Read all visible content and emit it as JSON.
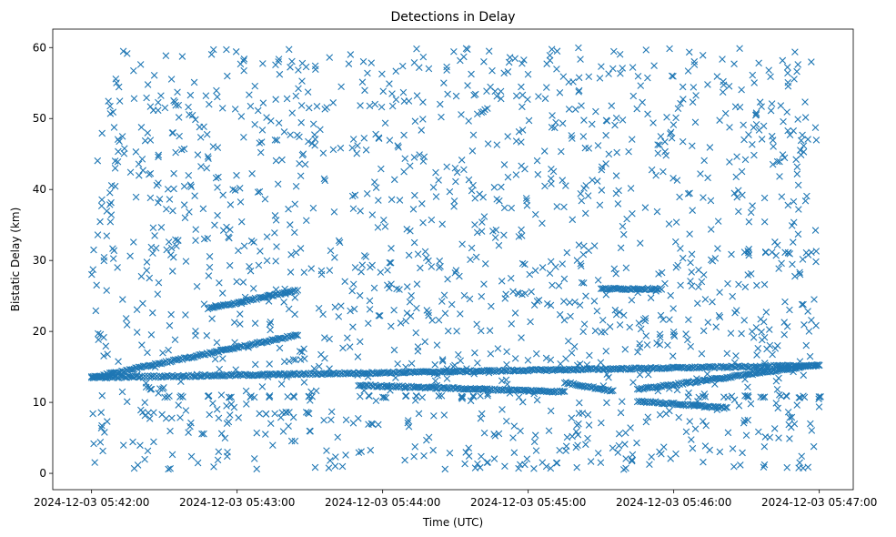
{
  "chart_data": {
    "type": "scatter",
    "title": "Detections in Delay",
    "xlabel": "Time (UTC)",
    "ylabel": "Bistatic Delay (km)",
    "marker": "x",
    "color": "#1f77b4",
    "x_unit": "seconds after 2024-12-03 05:42:00",
    "xlim": [
      "2024-12-03 05:41:44",
      "2024-12-03 05:47:14"
    ],
    "ylim": [
      -2.3,
      62.6
    ],
    "x_ticks": [
      "2024-12-03 05:42:00",
      "2024-12-03 05:43:00",
      "2024-12-03 05:44:00",
      "2024-12-03 05:45:00",
      "2024-12-03 05:46:00",
      "2024-12-03 05:47:00"
    ],
    "y_ticks": [
      "0",
      "10",
      "20",
      "30",
      "40",
      "50",
      "60"
    ],
    "y_tick_values": [
      0,
      10,
      20,
      30,
      40,
      50,
      60
    ],
    "grid": false,
    "legend": "none",
    "tracks": [
      {
        "x_start": 0,
        "x_end": 300,
        "y_start": 13.5,
        "y_end": 15.2,
        "description": "long rising track"
      },
      {
        "x_start": 0,
        "x_end": 85,
        "y_start": 13.5,
        "y_end": 19.5
      },
      {
        "x_start": 48,
        "x_end": 85,
        "y_start": 23.2,
        "y_end": 25.8
      },
      {
        "x_start": 110,
        "x_end": 195,
        "y_start": 12.4,
        "y_end": 11.5
      },
      {
        "x_start": 195,
        "x_end": 215,
        "y_start": 12.8,
        "y_end": 11.6
      },
      {
        "x_start": 210,
        "x_end": 235,
        "y_start": 26.0,
        "y_end": 26.0
      },
      {
        "x_start": 225,
        "x_end": 300,
        "y_start": 11.8,
        "y_end": 15.3
      },
      {
        "x_start": 225,
        "x_end": 262,
        "y_start": 10.2,
        "y_end": 9.2
      }
    ],
    "dashed_rows": [
      {
        "y": 12.0,
        "x_start": 22,
        "x_end": 32
      },
      {
        "y": 10.8,
        "x_start": 30,
        "x_end": 95
      },
      {
        "y": 8.5,
        "x_start": 68,
        "x_end": 95
      },
      {
        "y": 10.8,
        "x_start": 110,
        "x_end": 160
      },
      {
        "y": 10.8,
        "x_start": 250,
        "x_end": 300
      },
      {
        "y": 31.2,
        "x_start": 268,
        "x_end": 300
      }
    ],
    "background_noise": {
      "y_range": [
        0.5,
        60
      ],
      "x_range": [
        0,
        300
      ],
      "approx_points": 1500
    }
  }
}
